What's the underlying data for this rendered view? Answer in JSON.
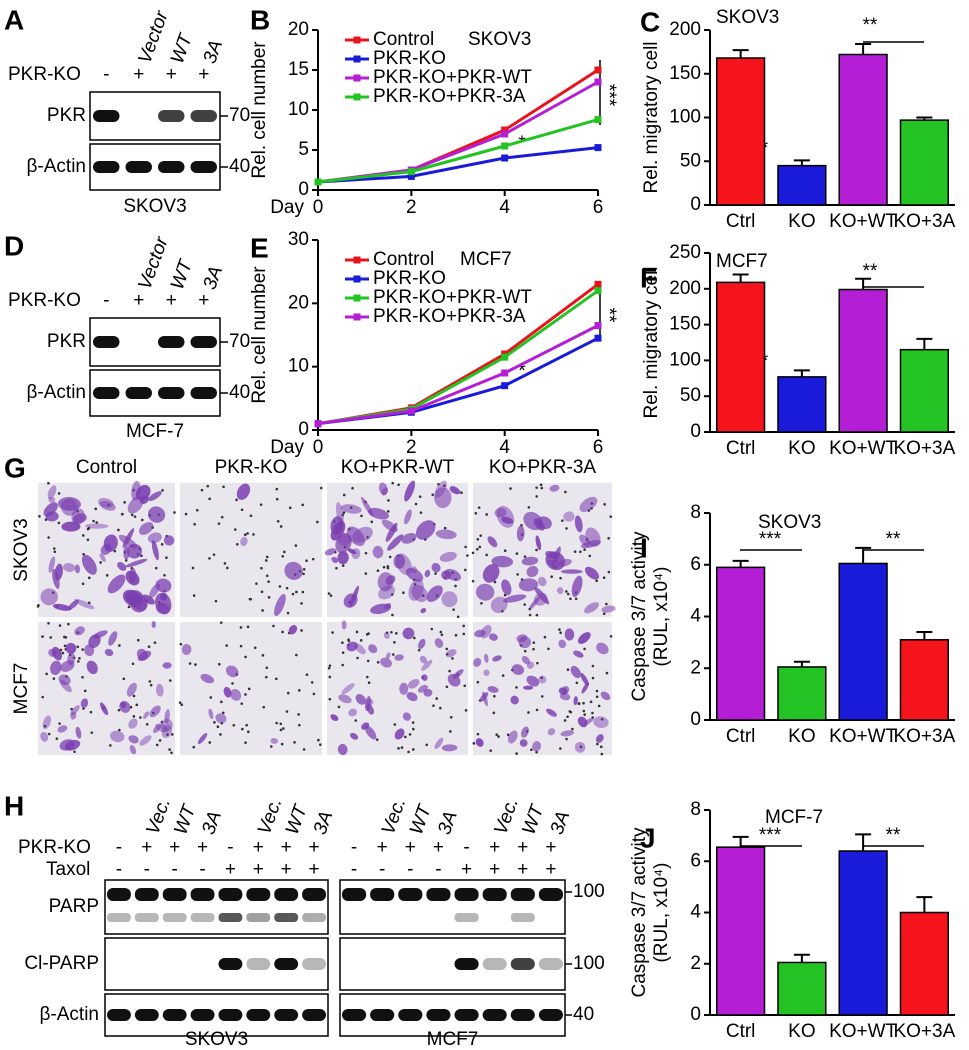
{
  "blots": [
    {
      "letter": "A",
      "row_label": "PKR-KO",
      "signs": [
        "-",
        "+",
        "+",
        "+"
      ],
      "lane_labels": [
        "Vector",
        "WT",
        "3A"
      ],
      "bands": [
        {
          "name": "PKR",
          "marker": "70"
        },
        {
          "name": "β-Actin",
          "marker": "40"
        }
      ],
      "cell_line": "SKOV3"
    },
    {
      "letter": "D",
      "row_label": "PKR-KO",
      "signs": [
        "-",
        "+",
        "+",
        "+"
      ],
      "lane_labels": [
        "Vector",
        "WT",
        "3A"
      ],
      "bands": [
        {
          "name": "PKR",
          "marker": "70"
        },
        {
          "name": "β-Actin",
          "marker": "40"
        }
      ],
      "cell_line": "MCF-7"
    }
  ],
  "blot_H": {
    "letter": "H",
    "row_labels": [
      "PKR-KO",
      "Taxol"
    ],
    "signs": [
      [
        "-",
        "+",
        "+",
        "+",
        "-",
        "+",
        "+",
        "+"
      ],
      [
        "-",
        "-",
        "-",
        "-",
        "+",
        "+",
        "+",
        "+"
      ]
    ],
    "lane_labels": [
      "Vec.",
      "WT",
      "3A",
      "Vec.",
      "WT",
      "3A"
    ],
    "bands": [
      {
        "name": "PARP",
        "marker": "100"
      },
      {
        "name": "Cl-PARP",
        "marker": "100"
      },
      {
        "name": "β-Actin",
        "marker": "40"
      }
    ],
    "cell_lines": [
      "SKOV3",
      "MCF7"
    ]
  },
  "micrographs": {
    "letter": "G",
    "columns": [
      "Control",
      "PKR-KO",
      "KO+PKR-WT",
      "KO+PKR-3A"
    ],
    "rows": [
      "SKOV3",
      "MCF7"
    ]
  },
  "chart_data": [
    {
      "type": "line",
      "panel": "B",
      "title": "SKOV3",
      "ylabel": "Rel. cell number",
      "xlabel": "Day",
      "x": [
        0,
        2,
        4,
        6
      ],
      "xlim": [
        0,
        6
      ],
      "xticks": [
        0,
        2,
        4,
        6
      ],
      "ylim": [
        0,
        20
      ],
      "yticks": [
        0,
        5,
        10,
        15,
        20
      ],
      "series": [
        {
          "name": "Control",
          "color": "#e8141b",
          "values": [
            1,
            2.5,
            7.5,
            15
          ]
        },
        {
          "name": "PKR-KO",
          "color": "#1a1adb",
          "values": [
            1,
            1.7,
            4,
            5.3
          ]
        },
        {
          "name": "PKR-KO+PKR-WT",
          "color": "#b41ed4",
          "values": [
            1,
            2.5,
            7,
            13.5
          ]
        },
        {
          "name": "PKR-KO+PKR-3A",
          "color": "#22c322",
          "values": [
            1,
            2.3,
            5.5,
            8.8
          ]
        }
      ],
      "annotations": [
        "***",
        "*"
      ]
    },
    {
      "type": "bar",
      "panel": "C",
      "title": "SKOV3",
      "ylabel": "Rel. migratory cell",
      "categories": [
        "Ctrl",
        "KO",
        "KO+WT",
        "KO+3A"
      ],
      "values": [
        168,
        45,
        172,
        97
      ],
      "errors": [
        9,
        6,
        12,
        3
      ],
      "colors": [
        "#f5141b",
        "#1a1adb",
        "#b41ed4",
        "#22c322"
      ],
      "ylim": [
        0,
        200
      ],
      "yticks": [
        0,
        50,
        100,
        150,
        200
      ],
      "annotations": [
        "***",
        "**"
      ]
    },
    {
      "type": "line",
      "panel": "E",
      "title": "MCF7",
      "ylabel": "Rel. cell number",
      "xlabel": "Day",
      "x": [
        0,
        2,
        4,
        6
      ],
      "xlim": [
        0,
        6
      ],
      "xticks": [
        0,
        2,
        4,
        6
      ],
      "ylim": [
        0,
        30
      ],
      "yticks": [
        0,
        10,
        20,
        30
      ],
      "series": [
        {
          "name": "Control",
          "color": "#e8141b",
          "values": [
            1,
            3.5,
            12,
            23
          ]
        },
        {
          "name": "PKR-KO",
          "color": "#1a1adb",
          "values": [
            1,
            2.8,
            7,
            14.5
          ]
        },
        {
          "name": "PKR-KO+PKR-WT",
          "color": "#22c322",
          "values": [
            1,
            3.3,
            11.5,
            22
          ]
        },
        {
          "name": "PKR-KO+PKR-3A",
          "color": "#b41ed4",
          "values": [
            1,
            3,
            9,
            16.5
          ]
        }
      ],
      "annotations": [
        "**",
        "*"
      ]
    },
    {
      "type": "bar",
      "panel": "F",
      "title": "MCF7",
      "ylabel": "Rel. migratory cell",
      "categories": [
        "Ctrl",
        "KO",
        "KO+WT",
        "KO+3A"
      ],
      "values": [
        209,
        77,
        199,
        115
      ],
      "errors": [
        11,
        9,
        15,
        15
      ],
      "colors": [
        "#f5141b",
        "#1a1adb",
        "#b41ed4",
        "#22c322"
      ],
      "ylim": [
        0,
        250
      ],
      "yticks": [
        0,
        50,
        100,
        150,
        200,
        250
      ],
      "annotations": [
        "***",
        "**"
      ]
    },
    {
      "type": "bar",
      "panel": "I",
      "title": "SKOV3",
      "ylabel": [
        "Caspase 3/7 activity",
        "(RUL, x10⁴)"
      ],
      "categories": [
        "Ctrl",
        "KO",
        "KO+WT",
        "KO+3A"
      ],
      "values": [
        5.9,
        2.05,
        6.05,
        3.1
      ],
      "errors": [
        0.25,
        0.2,
        0.6,
        0.3
      ],
      "colors": [
        "#b41ed4",
        "#22c322",
        "#1a1adb",
        "#f5141b"
      ],
      "ylim": [
        0,
        8
      ],
      "yticks": [
        0,
        2,
        4,
        6,
        8
      ],
      "annotations": [
        "***",
        "**"
      ]
    },
    {
      "type": "bar",
      "panel": "J",
      "title": "MCF-7",
      "ylabel": [
        "Caspase 3/7 activity",
        "(RUL, x10⁴)"
      ],
      "categories": [
        "Ctrl",
        "KO",
        "KO+WT",
        "KO+3A"
      ],
      "values": [
        6.55,
        2.05,
        6.4,
        4.0
      ],
      "errors": [
        0.4,
        0.3,
        0.65,
        0.6
      ],
      "colors": [
        "#b41ed4",
        "#22c322",
        "#1a1adb",
        "#f5141b"
      ],
      "ylim": [
        0,
        8
      ],
      "yticks": [
        0,
        2,
        4,
        6,
        8
      ],
      "annotations": [
        "***",
        "**"
      ]
    }
  ]
}
